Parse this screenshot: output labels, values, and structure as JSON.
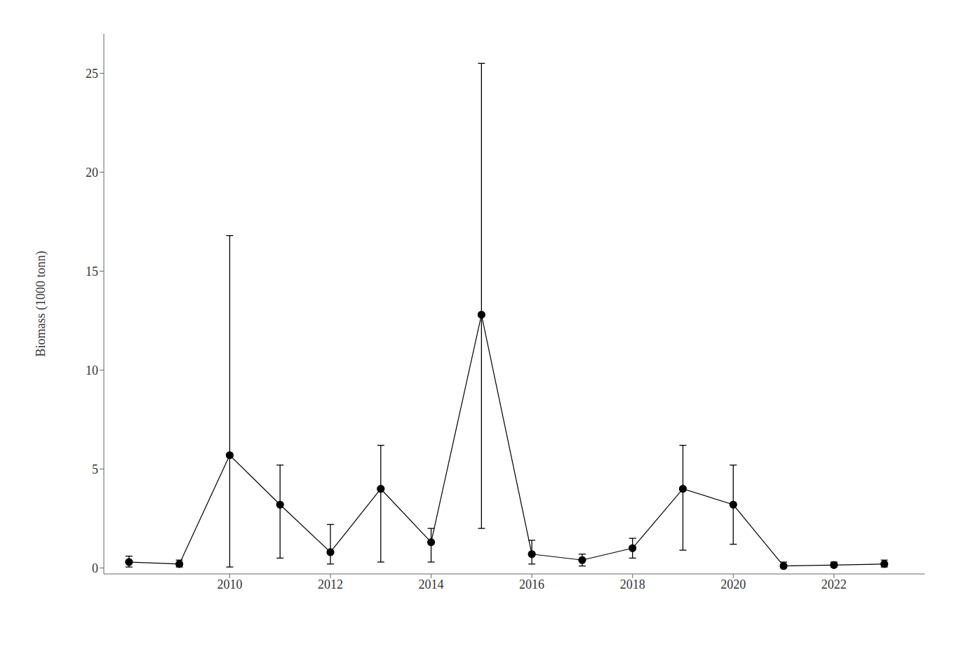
{
  "chart_data": {
    "type": "line",
    "ylabel": "Biomass (1000 tonn)",
    "x": [
      2008,
      2009,
      2010,
      2011,
      2012,
      2013,
      2014,
      2015,
      2016,
      2017,
      2018,
      2019,
      2020,
      2021,
      2022,
      2023
    ],
    "values": [
      0.3,
      0.2,
      5.7,
      3.2,
      0.8,
      4.0,
      1.3,
      12.8,
      0.7,
      0.4,
      1.0,
      4.0,
      3.2,
      0.1,
      0.15,
      0.2
    ],
    "ci_lower": [
      0.05,
      0.05,
      0.05,
      0.5,
      0.2,
      0.3,
      0.3,
      2.0,
      0.2,
      0.1,
      0.5,
      0.9,
      1.2,
      0.02,
      0.05,
      0.05
    ],
    "ci_upper": [
      0.6,
      0.4,
      16.8,
      5.2,
      2.2,
      6.2,
      2.0,
      25.5,
      1.4,
      0.7,
      1.5,
      6.2,
      5.2,
      0.3,
      0.3,
      0.4
    ],
    "color": "#000000",
    "marker": "circle",
    "xlim": [
      2007.5,
      2023.8
    ],
    "xticks": [
      2010,
      2012,
      2014,
      2016,
      2018,
      2020,
      2022
    ],
    "ylim": [
      -0.3,
      27
    ],
    "yticks": [
      0,
      5,
      10,
      15,
      20,
      25
    ],
    "grid": false
  }
}
